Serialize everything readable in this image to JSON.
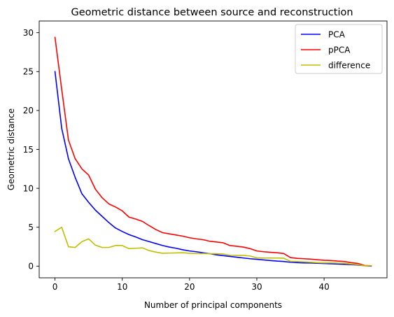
{
  "chart_data": {
    "type": "line",
    "title": "Geometric distance between source and reconstruction",
    "xlabel": "Number of principal components",
    "ylabel": "Geometric distance",
    "xlim": [
      -2.35,
      49.35
    ],
    "ylim": [
      -1.5,
      31.5
    ],
    "xticks": [
      0,
      10,
      20,
      30,
      40
    ],
    "yticks": [
      0,
      5,
      10,
      15,
      20,
      25,
      30
    ],
    "grid": false,
    "legend_position": "top-right",
    "x": [
      0,
      1,
      2,
      3,
      4,
      5,
      6,
      7,
      8,
      9,
      10,
      11,
      12,
      13,
      14,
      15,
      16,
      17,
      18,
      19,
      20,
      21,
      22,
      23,
      24,
      25,
      26,
      27,
      28,
      29,
      30,
      31,
      32,
      33,
      34,
      35,
      36,
      37,
      38,
      39,
      40,
      41,
      42,
      43,
      44,
      45,
      46,
      47
    ],
    "series": [
      {
        "name": "PCA",
        "color": "#0000ff",
        "values": [
          25.0,
          17.7,
          13.8,
          11.4,
          9.3,
          8.2,
          7.2,
          6.4,
          5.6,
          4.9,
          4.45,
          4.05,
          3.75,
          3.4,
          3.15,
          2.9,
          2.65,
          2.45,
          2.3,
          2.1,
          1.95,
          1.85,
          1.72,
          1.6,
          1.45,
          1.35,
          1.25,
          1.15,
          1.05,
          0.95,
          0.88,
          0.8,
          0.72,
          0.65,
          0.6,
          0.5,
          0.45,
          0.42,
          0.4,
          0.37,
          0.34,
          0.3,
          0.27,
          0.23,
          0.19,
          0.15,
          0.05,
          0.0
        ]
      },
      {
        "name": "pPCA",
        "color": "#ff0000",
        "values": [
          29.4,
          22.7,
          16.2,
          13.8,
          12.5,
          11.7,
          9.9,
          8.8,
          8.0,
          7.6,
          7.1,
          6.3,
          6.05,
          5.75,
          5.2,
          4.7,
          4.3,
          4.15,
          4.0,
          3.85,
          3.65,
          3.5,
          3.4,
          3.2,
          3.1,
          3.0,
          2.65,
          2.55,
          2.45,
          2.25,
          1.95,
          1.85,
          1.78,
          1.72,
          1.62,
          1.1,
          1.0,
          0.95,
          0.9,
          0.82,
          0.75,
          0.72,
          0.65,
          0.6,
          0.45,
          0.35,
          0.08,
          0.05
        ]
      },
      {
        "name": "difference",
        "color": "#bfbf00",
        "values": [
          4.45,
          5.0,
          2.5,
          2.4,
          3.15,
          3.5,
          2.7,
          2.4,
          2.4,
          2.65,
          2.65,
          2.25,
          2.3,
          2.35,
          2.0,
          1.8,
          1.65,
          1.68,
          1.7,
          1.72,
          1.65,
          1.62,
          1.62,
          1.6,
          1.6,
          1.55,
          1.4,
          1.38,
          1.38,
          1.3,
          1.07,
          1.05,
          1.05,
          1.05,
          1.02,
          0.62,
          0.6,
          0.55,
          0.5,
          0.45,
          0.42,
          0.42,
          0.38,
          0.37,
          0.26,
          0.2,
          0.03,
          0.05
        ]
      }
    ]
  }
}
